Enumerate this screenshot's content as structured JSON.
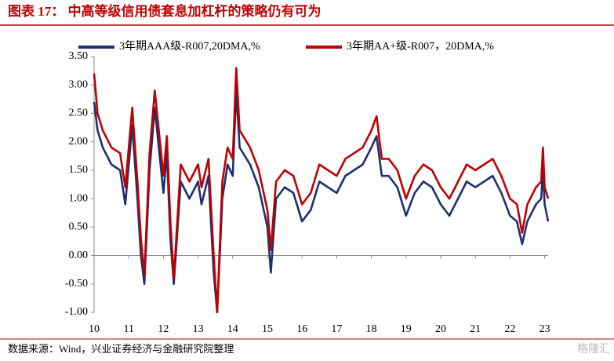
{
  "chart_data": {
    "type": "line",
    "title": "图表 17：  中高等级信用债套息加杠杆的策略仍有可为",
    "source": "数据来源：Wind，兴业证券经济与金融研究院整理",
    "watermark": "格隆汇",
    "x": [
      10.0,
      10.1,
      10.25,
      10.5,
      10.75,
      10.9,
      11.0,
      11.1,
      11.25,
      11.35,
      11.45,
      11.6,
      11.75,
      11.85,
      12.0,
      12.1,
      12.2,
      12.3,
      12.5,
      12.75,
      13.0,
      13.1,
      13.3,
      13.45,
      13.55,
      13.7,
      13.85,
      14.0,
      14.1,
      14.2,
      14.5,
      14.75,
      15.0,
      15.1,
      15.25,
      15.5,
      15.75,
      16.0,
      16.25,
      16.5,
      16.75,
      17.0,
      17.25,
      17.5,
      17.75,
      18.0,
      18.15,
      18.3,
      18.5,
      18.75,
      19.0,
      19.25,
      19.5,
      19.75,
      20.0,
      20.25,
      20.5,
      20.75,
      21.0,
      21.25,
      21.5,
      21.75,
      22.0,
      22.2,
      22.35,
      22.5,
      22.75,
      22.9,
      22.95,
      23.0,
      23.1
    ],
    "series": [
      {
        "name": "3年期AAA级-R007,20DMA,%",
        "color": "#1f2f6e",
        "values": [
          2.7,
          2.2,
          1.9,
          1.6,
          1.5,
          0.9,
          1.6,
          2.3,
          1.0,
          0.0,
          -0.5,
          1.5,
          2.6,
          2.0,
          1.1,
          1.8,
          0.3,
          -0.5,
          1.3,
          1.0,
          1.3,
          0.9,
          1.4,
          -0.3,
          -1.0,
          1.0,
          1.6,
          1.4,
          2.9,
          1.9,
          1.6,
          1.2,
          0.5,
          -0.3,
          1.0,
          1.2,
          1.1,
          0.6,
          0.8,
          1.3,
          1.2,
          1.1,
          1.4,
          1.5,
          1.6,
          1.9,
          2.1,
          1.4,
          1.4,
          1.2,
          0.7,
          1.1,
          1.3,
          1.2,
          0.9,
          0.7,
          1.0,
          1.3,
          1.2,
          1.3,
          1.4,
          1.1,
          0.7,
          0.6,
          0.2,
          0.6,
          0.9,
          1.0,
          1.5,
          0.9,
          0.6
        ]
      },
      {
        "name": "3年期AA+级-R007，20DMA,%",
        "color": "#c00000",
        "values": [
          3.2,
          2.5,
          2.2,
          1.9,
          1.8,
          1.2,
          1.9,
          2.6,
          1.3,
          0.3,
          -0.35,
          1.8,
          2.9,
          2.3,
          1.4,
          2.1,
          0.6,
          -0.4,
          1.6,
          1.3,
          1.6,
          1.2,
          1.7,
          0.0,
          -1.0,
          1.3,
          1.9,
          1.7,
          3.3,
          2.2,
          1.9,
          1.5,
          0.8,
          0.1,
          1.3,
          1.5,
          1.4,
          0.9,
          1.1,
          1.6,
          1.5,
          1.4,
          1.7,
          1.8,
          1.9,
          2.2,
          2.45,
          1.7,
          1.7,
          1.5,
          1.0,
          1.4,
          1.6,
          1.5,
          1.2,
          1.0,
          1.3,
          1.6,
          1.5,
          1.6,
          1.7,
          1.4,
          1.0,
          0.9,
          0.4,
          0.9,
          1.2,
          1.3,
          1.9,
          1.2,
          1.0
        ]
      }
    ],
    "xlim": [
      10,
      23.1
    ],
    "xticks": [
      10,
      11,
      12,
      13,
      14,
      15,
      16,
      17,
      18,
      19,
      20,
      21,
      22,
      23
    ],
    "ylim": [
      -1,
      3.5
    ],
    "yticks": [
      {
        "value": -1,
        "label": "-1.00"
      },
      {
        "value": -0.5,
        "label": "-0.50"
      },
      {
        "value": 0,
        "label": "0.00"
      },
      {
        "value": 0.5,
        "label": "0.50"
      },
      {
        "value": 1,
        "label": "1.00"
      },
      {
        "value": 1.5,
        "label": "1.50"
      },
      {
        "value": 2,
        "label": "2.00"
      },
      {
        "value": 2.5,
        "label": "2.50"
      },
      {
        "value": 3,
        "label": "3.00"
      },
      {
        "value": 3.5,
        "label": "3.50"
      }
    ]
  }
}
